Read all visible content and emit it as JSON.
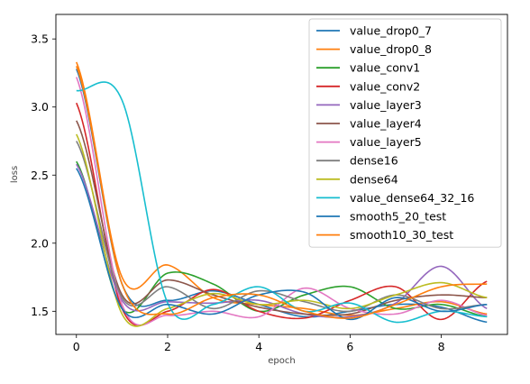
{
  "chart_data": {
    "type": "line",
    "title": "",
    "xlabel": "epoch",
    "ylabel": "loss",
    "xlim": [
      -0.45,
      9.45
    ],
    "ylim": [
      1.33,
      3.68
    ],
    "xticks": [
      0,
      2,
      4,
      6,
      8
    ],
    "yticks": [
      1.5,
      2.0,
      2.5,
      3.0,
      3.5
    ],
    "ytick_labels": [
      "1.5",
      "2.0",
      "2.5",
      "3.0",
      "3.5"
    ],
    "grid": false,
    "legend_position": "top-right",
    "x": [
      0,
      1,
      2,
      3,
      4,
      5,
      6,
      7,
      8,
      9
    ],
    "series": [
      {
        "name": "value_drop0_7",
        "color": "#1f77b4",
        "values": [
          3.28,
          1.7,
          1.58,
          1.65,
          1.55,
          1.46,
          1.5,
          1.55,
          1.53,
          1.42
        ]
      },
      {
        "name": "value_drop0_8",
        "color": "#ff7f0e",
        "values": [
          3.33,
          1.75,
          1.84,
          1.6,
          1.55,
          1.52,
          1.47,
          1.52,
          1.57,
          1.48
        ]
      },
      {
        "name": "value_conv1",
        "color": "#2ca02c",
        "values": [
          2.6,
          1.52,
          1.78,
          1.7,
          1.5,
          1.62,
          1.68,
          1.52,
          1.55,
          1.46
        ]
      },
      {
        "name": "value_conv2",
        "color": "#d62728",
        "values": [
          3.03,
          1.52,
          1.5,
          1.66,
          1.5,
          1.45,
          1.58,
          1.68,
          1.44,
          1.72
        ]
      },
      {
        "name": "value_layer3",
        "color": "#9467bd",
        "values": [
          2.58,
          1.58,
          1.57,
          1.56,
          1.58,
          1.48,
          1.46,
          1.56,
          1.83,
          1.52
        ]
      },
      {
        "name": "value_layer4",
        "color": "#8c564b",
        "values": [
          2.9,
          1.62,
          1.73,
          1.62,
          1.53,
          1.48,
          1.48,
          1.58,
          1.62,
          1.6
        ]
      },
      {
        "name": "value_layer5",
        "color": "#e377c2",
        "values": [
          3.22,
          1.55,
          1.47,
          1.5,
          1.46,
          1.67,
          1.52,
          1.48,
          1.58,
          1.47
        ]
      },
      {
        "name": "dense16",
        "color": "#7f7f7f",
        "values": [
          2.75,
          1.6,
          1.68,
          1.52,
          1.65,
          1.57,
          1.5,
          1.62,
          1.52,
          1.55
        ]
      },
      {
        "name": "dense64",
        "color": "#bcbd22",
        "values": [
          2.8,
          1.48,
          1.52,
          1.63,
          1.55,
          1.58,
          1.52,
          1.62,
          1.71,
          1.6
        ]
      },
      {
        "name": "value_dense64_32_16",
        "color": "#17becf",
        "values": [
          3.12,
          3.05,
          1.56,
          1.55,
          1.68,
          1.5,
          1.56,
          1.42,
          1.5,
          1.46
        ]
      },
      {
        "name": "smooth5_20_test",
        "color": "#1f77b4",
        "values": [
          2.55,
          1.52,
          1.55,
          1.48,
          1.62,
          1.64,
          1.44,
          1.6,
          1.5,
          1.55
        ]
      },
      {
        "name": "smooth10_30_test",
        "color": "#ff7f0e",
        "values": [
          3.3,
          1.7,
          1.48,
          1.6,
          1.62,
          1.5,
          1.45,
          1.55,
          1.68,
          1.7
        ]
      }
    ]
  }
}
